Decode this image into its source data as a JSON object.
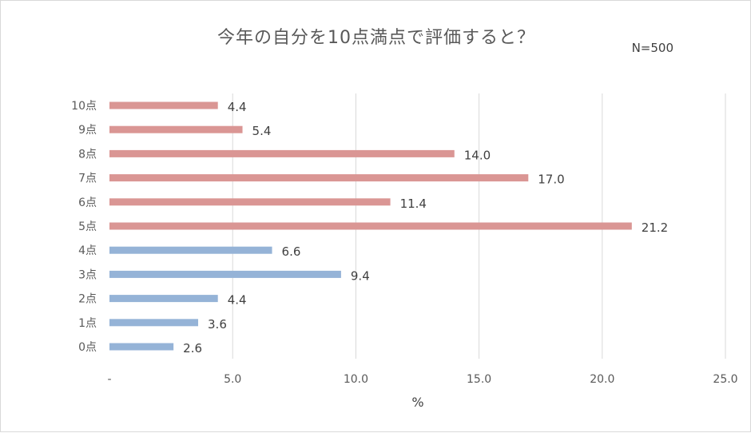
{
  "chart_data": {
    "type": "bar",
    "orientation": "horizontal",
    "title": "今年の自分を10点満点で評価すると？",
    "note": "N=500",
    "xlabel": "%",
    "ylabel": "",
    "xlim": [
      0,
      25
    ],
    "x_ticks": [
      0,
      5,
      10,
      15,
      20,
      25
    ],
    "x_tick_labels": [
      "-",
      "5.0",
      "10.0",
      "15.0",
      "20.0",
      "25.0"
    ],
    "grid": true,
    "categories": [
      "10点",
      "9点",
      "8点",
      "7点",
      "6点",
      "5点",
      "4点",
      "3点",
      "2点",
      "1点",
      "0点"
    ],
    "values": [
      4.4,
      5.4,
      14.0,
      17.0,
      11.4,
      21.2,
      6.6,
      9.4,
      4.4,
      3.6,
      2.6
    ],
    "value_labels": [
      "4.4",
      "5.4",
      "14.0",
      "17.0",
      "11.4",
      "21.2",
      "6.6",
      "9.4",
      "4.4",
      "3.6",
      "2.6"
    ],
    "colors": [
      "#da9694",
      "#da9694",
      "#da9694",
      "#da9694",
      "#da9694",
      "#da9694",
      "#95b3d7",
      "#95b3d7",
      "#95b3d7",
      "#95b3d7",
      "#95b3d7"
    ]
  },
  "style": {
    "gridline_color": "#d9d9d9",
    "text_color": "#595959"
  }
}
